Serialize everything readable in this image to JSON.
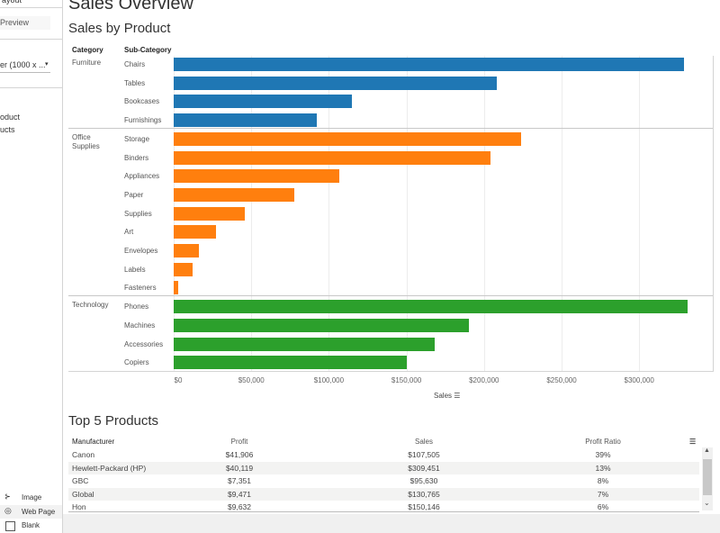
{
  "sidebar": {
    "layout_dropdown": "ayout",
    "preview_button": "Preview",
    "size_dropdown": "er (1000 x ...",
    "sheets": [
      "oduct",
      "ucts"
    ],
    "objects": [
      {
        "label": "Image",
        "icon": "image-icon"
      },
      {
        "label": "Web Page",
        "icon": "globe-icon"
      },
      {
        "label": "Blank",
        "icon": "blank-icon"
      }
    ]
  },
  "dashboard_title": "Sales Overview",
  "chart_title": "Sales by Product",
  "chart_data": {
    "type": "bar",
    "orientation": "horizontal",
    "column_headers": [
      "Category",
      "Sub-Category"
    ],
    "xlabel": "Sales",
    "xlim": [
      0,
      335000
    ],
    "x_ticks": [
      "$0",
      "$50,000",
      "$100,000",
      "$150,000",
      "$200,000",
      "$250,000",
      "$300,000"
    ],
    "grid": true,
    "groups": [
      {
        "category": "Furniture",
        "color": "#1f77b4",
        "items": [
          {
            "name": "Chairs",
            "value": 329000
          },
          {
            "name": "Tables",
            "value": 208000
          },
          {
            "name": "Bookcases",
            "value": 115000
          },
          {
            "name": "Furnishings",
            "value": 92000
          }
        ]
      },
      {
        "category": "Office Supplies",
        "color": "#ff7f0e",
        "items": [
          {
            "name": "Storage",
            "value": 224000
          },
          {
            "name": "Binders",
            "value": 204000
          },
          {
            "name": "Appliances",
            "value": 107000
          },
          {
            "name": "Paper",
            "value": 78000
          },
          {
            "name": "Supplies",
            "value": 46000
          },
          {
            "name": "Art",
            "value": 27000
          },
          {
            "name": "Envelopes",
            "value": 16000
          },
          {
            "name": "Labels",
            "value": 12000
          },
          {
            "name": "Fasteners",
            "value": 3000
          }
        ]
      },
      {
        "category": "Technology",
        "color": "#2ca02c",
        "items": [
          {
            "name": "Phones",
            "value": 331000
          },
          {
            "name": "Machines",
            "value": 190000
          },
          {
            "name": "Accessories",
            "value": 168000
          },
          {
            "name": "Copiers",
            "value": 150000
          }
        ]
      }
    ]
  },
  "top5": {
    "title": "Top 5 Products",
    "columns": [
      "Manufacturer",
      "Profit",
      "Sales",
      "Profit Ratio"
    ],
    "rows": [
      [
        "Canon",
        "$41,906",
        "$107,505",
        "39%"
      ],
      [
        "Hewlett-Packard (HP)",
        "$40,119",
        "$309,451",
        "13%"
      ],
      [
        "GBC",
        "$7,351",
        "$95,630",
        "8%"
      ],
      [
        "Global",
        "$9,471",
        "$130,765",
        "7%"
      ],
      [
        "Hon",
        "$9,632",
        "$150,146",
        "6%"
      ]
    ]
  }
}
